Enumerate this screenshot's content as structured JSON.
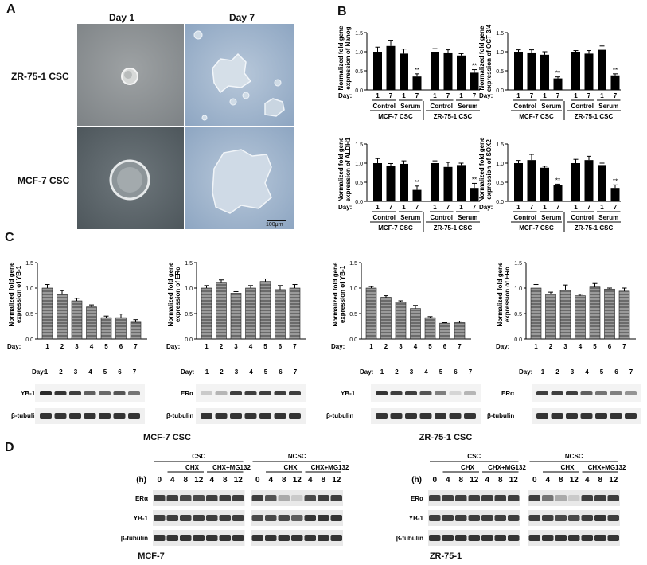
{
  "panels": {
    "A": "A",
    "B": "B",
    "C": "C",
    "D": "D"
  },
  "panel_a": {
    "col_labels": [
      "Day 1",
      "Day 7"
    ],
    "row_labels": [
      "ZR-75-1 CSC",
      "MCF-7 CSC"
    ],
    "scale_bar": "100μm",
    "colors": {
      "gray_field": "#8e9396",
      "blue_field": "#9fb4cc",
      "gray_dark": "#5f676c"
    }
  },
  "panel_b": {
    "ylabels": [
      [
        "Normalized fold gene",
        "expression of Nanog"
      ],
      [
        "Normalized fold gene",
        "expression of OCT 3/4"
      ],
      [
        "Normalized fold gene",
        "expression of ALDH1"
      ],
      [
        "Normalized fold gene",
        "expression of SOX2"
      ]
    ],
    "day_label": "Day:",
    "day_ticks": [
      "1",
      "7"
    ],
    "conditions": [
      "Control",
      "Serum"
    ],
    "cell_lines": [
      "MCF-7 CSC",
      "ZR-75-1 CSC"
    ],
    "sig": "**"
  },
  "panel_c": {
    "ylabels": [
      [
        "Normalized fold gene",
        "expression of YB-1"
      ],
      [
        "Normalized fold gene",
        "expression of ERα"
      ],
      [
        "Normalized fold gene",
        "expression of YB-1"
      ],
      [
        "Normalized fold gene",
        "expression of ERα"
      ]
    ],
    "day_label": "Day:",
    "blot_day_label": "Day:",
    "days": [
      "1",
      "2",
      "3",
      "4",
      "5",
      "6",
      "7"
    ],
    "blot_targets": [
      "YB-1",
      "ERα",
      "YB-1",
      "ERα"
    ],
    "loading": "β-tubulin",
    "group_captions": [
      "MCF-7 CSC",
      "ZR-75-1 CSC"
    ]
  },
  "panel_d": {
    "groups": [
      "CSC",
      "NCSC"
    ],
    "treatments": [
      "CHX",
      "CHX+MG132"
    ],
    "time_label": "(h)",
    "times": [
      "0",
      "4",
      "8",
      "12",
      "4",
      "8",
      "12"
    ],
    "rows": [
      "ERα",
      "YB-1",
      "β-tubulin"
    ],
    "cell_lines": [
      "MCF-7",
      "ZR-75-1"
    ]
  },
  "chart_data": [
    {
      "type": "bar",
      "title": "Nanog",
      "ylabel": "Normalized fold gene expression of Nanog",
      "ylim": [
        0,
        1.5
      ],
      "yticks": [
        "0.0",
        "0.5",
        "1.0",
        "1.5"
      ],
      "x": [
        "MCF-7 Control D1",
        "MCF-7 Control D7",
        "MCF-7 Serum D1",
        "MCF-7 Serum D7",
        "ZR-75-1 Control D1",
        "ZR-75-1 Control D7",
        "ZR-75-1 Serum D1",
        "ZR-75-1 Serum D7"
      ],
      "values": [
        1.0,
        1.15,
        0.95,
        0.35,
        1.0,
        0.98,
        0.9,
        0.45
      ],
      "errors": [
        0.12,
        0.15,
        0.12,
        0.07,
        0.08,
        0.07,
        0.05,
        0.08
      ],
      "significant": [
        false,
        false,
        false,
        true,
        false,
        false,
        false,
        true
      ]
    },
    {
      "type": "bar",
      "title": "OCT 3/4",
      "ylabel": "Normalized fold gene expression of OCT 3/4",
      "ylim": [
        0,
        1.5
      ],
      "yticks": [
        "0.0",
        "0.5",
        "1.0",
        "1.5"
      ],
      "x": [
        "MCF-7 Control D1",
        "MCF-7 Control D7",
        "MCF-7 Serum D1",
        "MCF-7 Serum D7",
        "ZR-75-1 Control D1",
        "ZR-75-1 Control D7",
        "ZR-75-1 Serum D1",
        "ZR-75-1 Serum D7"
      ],
      "values": [
        1.0,
        0.98,
        0.92,
        0.3,
        1.0,
        0.95,
        1.05,
        0.38
      ],
      "errors": [
        0.05,
        0.07,
        0.08,
        0.04,
        0.03,
        0.08,
        0.1,
        0.04
      ],
      "significant": [
        false,
        false,
        false,
        true,
        false,
        false,
        false,
        true
      ]
    },
    {
      "type": "bar",
      "title": "ALDH1",
      "ylabel": "Normalized fold gene expression of ALDH1",
      "ylim": [
        0,
        1.5
      ],
      "yticks": [
        "0.0",
        "0.5",
        "1.0",
        "1.5"
      ],
      "x": [
        "MCF-7 Control D1",
        "MCF-7 Control D7",
        "MCF-7 Serum D1",
        "MCF-7 Serum D7",
        "ZR-75-1 Control D1",
        "ZR-75-1 Control D7",
        "ZR-75-1 Serum D1",
        "ZR-75-1 Serum D7"
      ],
      "values": [
        1.0,
        0.92,
        0.98,
        0.3,
        1.0,
        0.9,
        0.95,
        0.35
      ],
      "errors": [
        0.12,
        0.07,
        0.08,
        0.1,
        0.06,
        0.12,
        0.05,
        0.12
      ],
      "significant": [
        false,
        false,
        false,
        true,
        false,
        false,
        false,
        true
      ]
    },
    {
      "type": "bar",
      "title": "SOX2",
      "ylabel": "Normalized fold gene expression of SOX2",
      "ylim": [
        0,
        1.5
      ],
      "yticks": [
        "0.0",
        "0.5",
        "1.0",
        "1.5"
      ],
      "x": [
        "MCF-7 Control D1",
        "MCF-7 Control D7",
        "MCF-7 Serum D1",
        "MCF-7 Serum D7",
        "ZR-75-1 Control D1",
        "ZR-75-1 Control D7",
        "ZR-75-1 Serum D1",
        "ZR-75-1 Serum D7"
      ],
      "values": [
        1.0,
        1.08,
        0.88,
        0.42,
        1.0,
        1.08,
        0.95,
        0.35
      ],
      "errors": [
        0.07,
        0.15,
        0.04,
        0.03,
        0.1,
        0.1,
        0.05,
        0.08
      ],
      "significant": [
        false,
        false,
        false,
        true,
        false,
        false,
        false,
        true
      ]
    },
    {
      "type": "bar",
      "title": "MCF-7 CSC YB-1",
      "ylabel": "Normalized fold gene expression of YB-1",
      "ylim": [
        0,
        1.5
      ],
      "yticks": [
        "0.0",
        "0.5",
        "1.0",
        "1.5"
      ],
      "categories": [
        "1",
        "2",
        "3",
        "4",
        "5",
        "6",
        "7"
      ],
      "values": [
        1.0,
        0.87,
        0.75,
        0.63,
        0.42,
        0.42,
        0.33
      ],
      "errors": [
        0.07,
        0.08,
        0.05,
        0.04,
        0.03,
        0.07,
        0.05
      ]
    },
    {
      "type": "bar",
      "title": "MCF-7 CSC ERα",
      "ylabel": "Normalized fold gene expression of ERα",
      "ylim": [
        0,
        1.5
      ],
      "yticks": [
        "0.0",
        "0.5",
        "1.0",
        "1.5"
      ],
      "categories": [
        "1",
        "2",
        "3",
        "4",
        "5",
        "6",
        "7"
      ],
      "values": [
        1.0,
        1.1,
        0.9,
        1.0,
        1.13,
        0.97,
        1.0
      ],
      "errors": [
        0.05,
        0.06,
        0.03,
        0.05,
        0.05,
        0.08,
        0.07
      ]
    },
    {
      "type": "bar",
      "title": "ZR-75-1 CSC YB-1",
      "ylabel": "Normalized fold gene expression of YB-1",
      "ylim": [
        0,
        1.5
      ],
      "yticks": [
        "0.0",
        "0.5",
        "1.0",
        "1.5"
      ],
      "categories": [
        "1",
        "2",
        "3",
        "4",
        "5",
        "6",
        "7"
      ],
      "values": [
        1.0,
        0.82,
        0.72,
        0.6,
        0.42,
        0.31,
        0.32
      ],
      "errors": [
        0.03,
        0.03,
        0.03,
        0.06,
        0.02,
        0.01,
        0.03
      ]
    },
    {
      "type": "bar",
      "title": "ZR-75-1 CSC ERα",
      "ylabel": "Normalized fold gene expression of ERα",
      "ylim": [
        0,
        1.5
      ],
      "yticks": [
        "0.0",
        "0.5",
        "1.0",
        "1.5"
      ],
      "categories": [
        "1",
        "2",
        "3",
        "4",
        "5",
        "6",
        "7"
      ],
      "values": [
        1.0,
        0.88,
        0.96,
        0.85,
        1.02,
        0.98,
        0.94
      ],
      "errors": [
        0.07,
        0.04,
        0.1,
        0.03,
        0.07,
        0.02,
        0.06
      ]
    }
  ]
}
